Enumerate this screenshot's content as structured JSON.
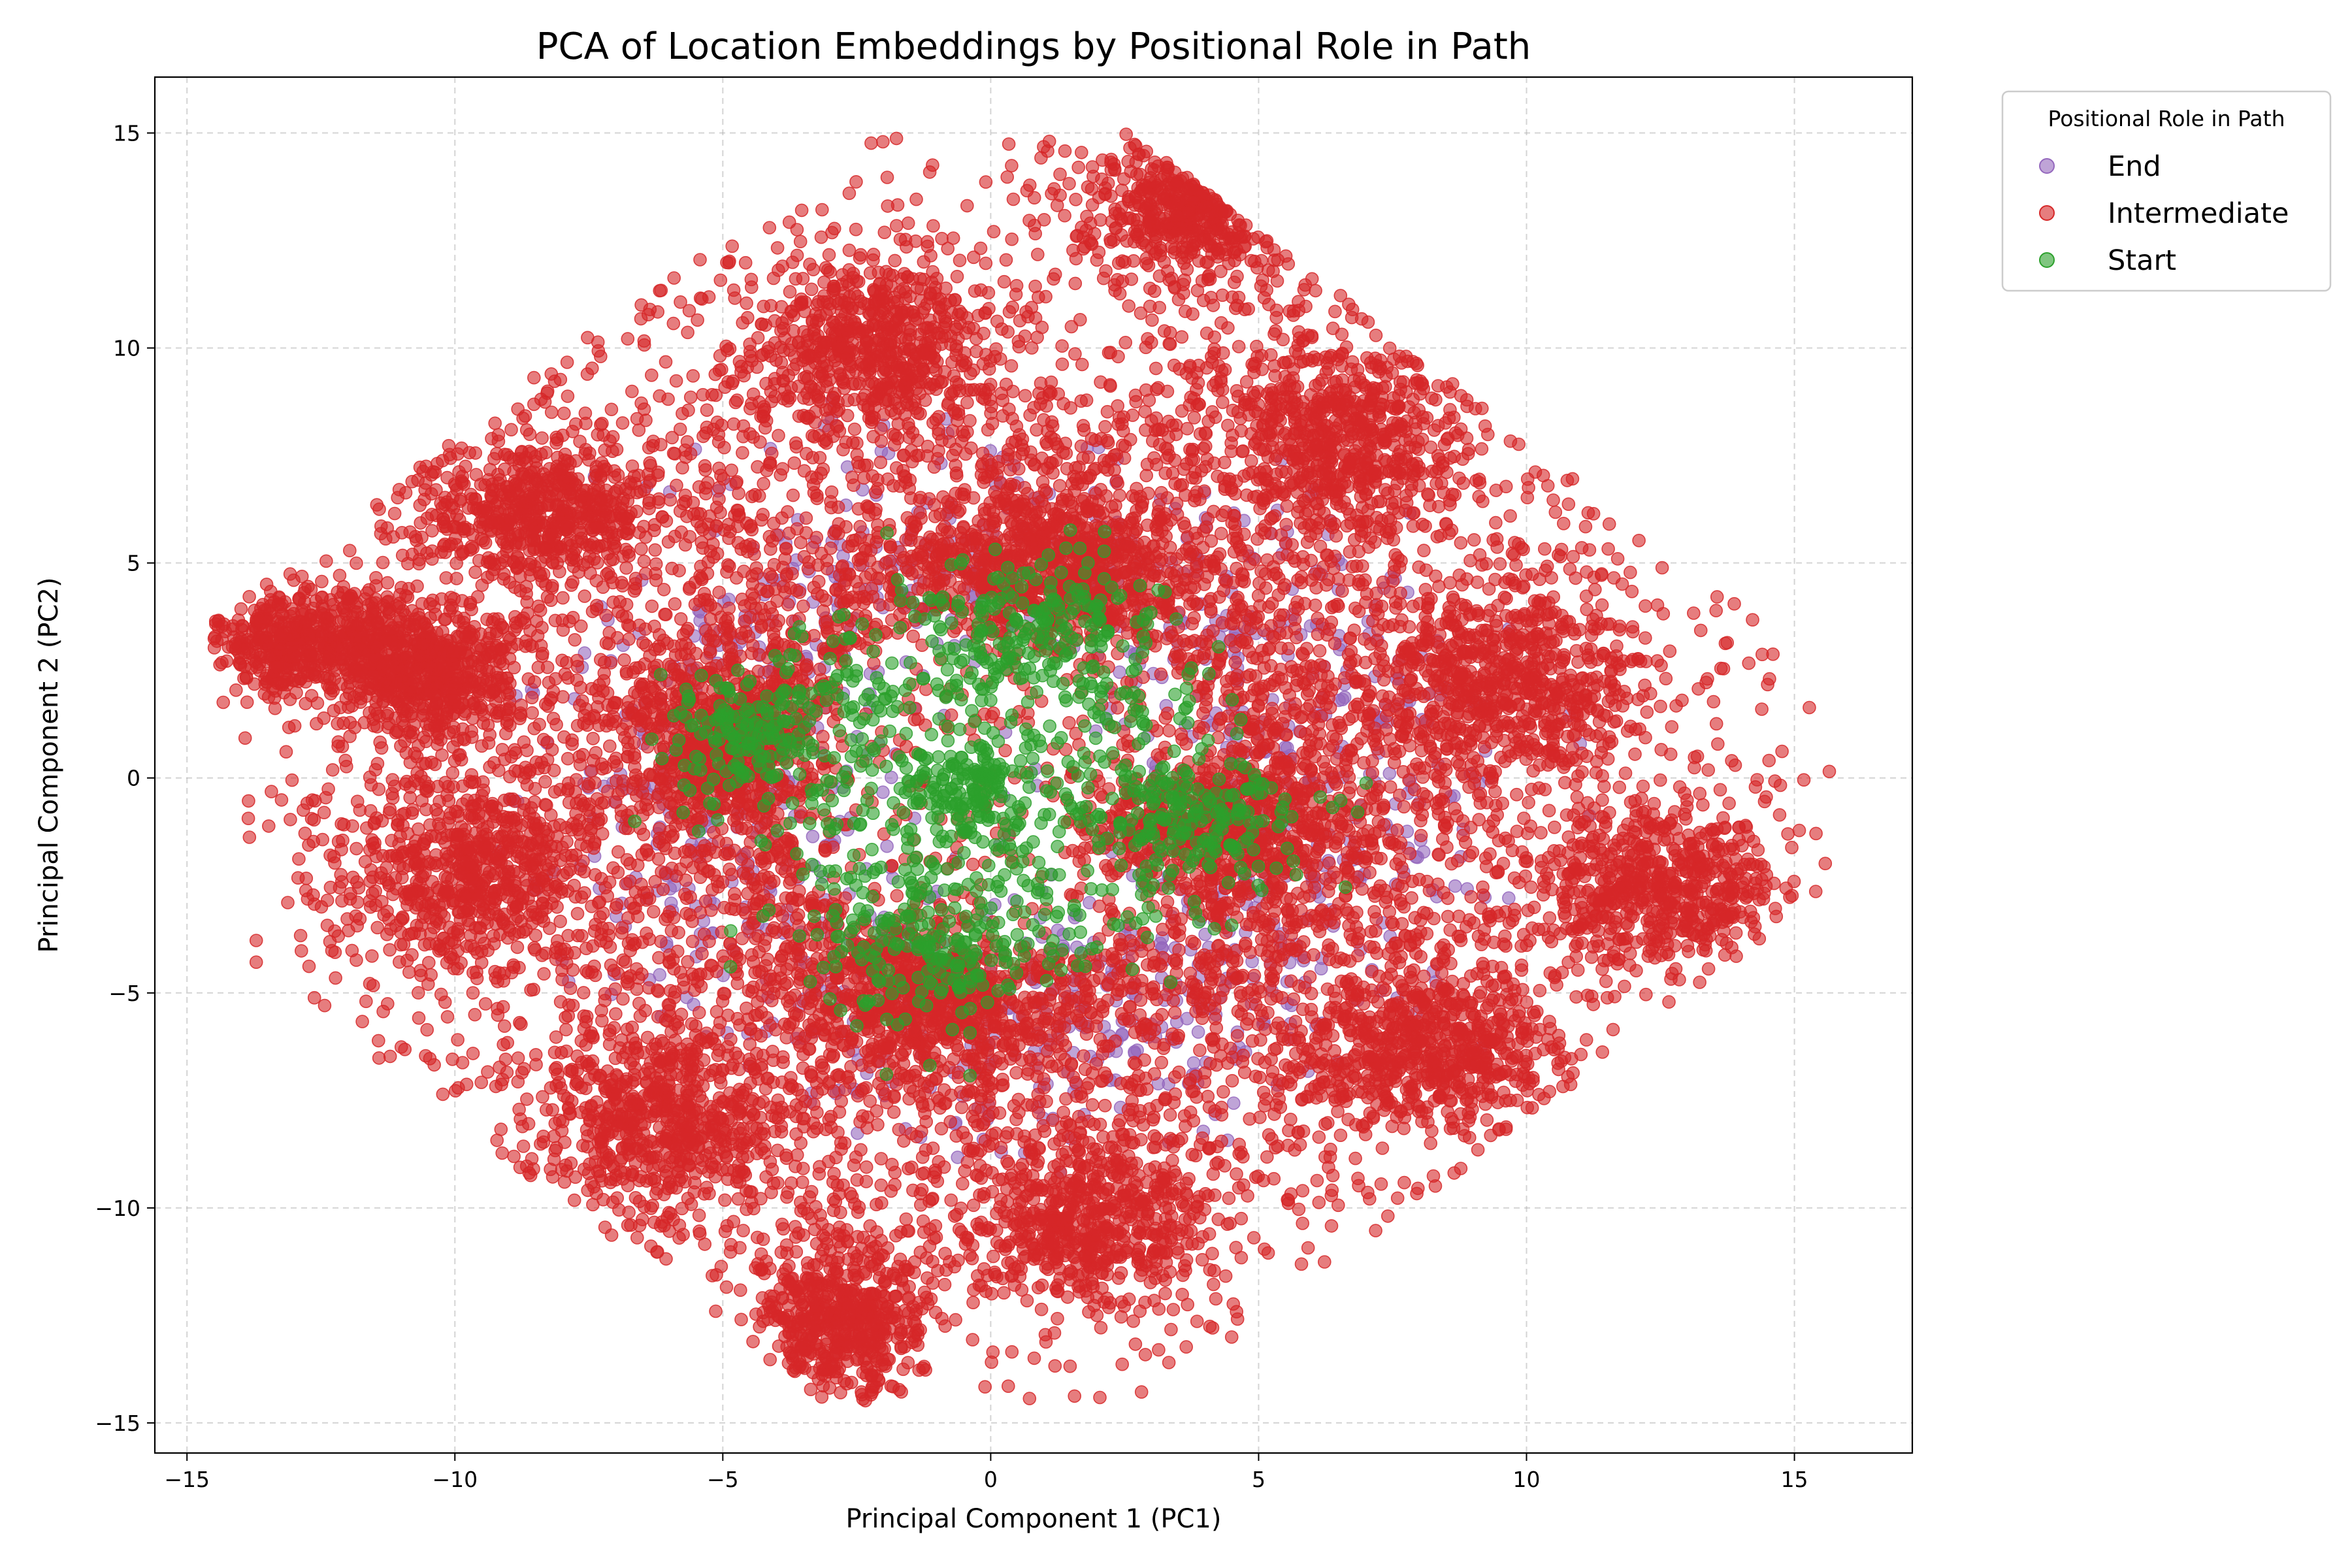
{
  "chart_data": {
    "type": "scatter",
    "title": "PCA of Location Embeddings by Positional Role in Path",
    "xlabel": "Principal Component 1 (PC1)",
    "ylabel": "Principal Component 2 (PC2)",
    "xlim": [
      -15.6,
      17.2
    ],
    "ylim": [
      -15.7,
      16.3
    ],
    "xticks": [
      -15,
      -10,
      -5,
      0,
      5,
      10,
      15
    ],
    "yticks": [
      -15,
      -10,
      -5,
      0,
      5,
      10,
      15
    ],
    "xtick_labels": [
      "−15",
      "−10",
      "−5",
      "0",
      "5",
      "10",
      "15"
    ],
    "ytick_labels": [
      "−15",
      "−10",
      "−5",
      "0",
      "5",
      "10",
      "15"
    ],
    "grid": true,
    "legend": {
      "title": "Positional Role in Path",
      "placement": "outside-upper-right"
    },
    "series": [
      {
        "name": "End",
        "color": "#9467bd",
        "alpha": 0.6,
        "points_approx": 1100,
        "distribution": {
          "shape": "ring",
          "center": [
            0.5,
            -0.3
          ],
          "radius": 6.0,
          "spread": 1.6
        }
      },
      {
        "name": "Intermediate",
        "color": "#d62728",
        "alpha": 0.6,
        "points_approx": 16000,
        "clusters": [
          {
            "center": [
              -2.2,
              10.2
            ],
            "sd": [
              1.0,
              1.1
            ]
          },
          {
            "center": [
              3.8,
              13.2
            ],
            "sd": [
              1.0,
              0.9
            ]
          },
          {
            "center": [
              6.5,
              8.0
            ],
            "sd": [
              1.2,
              1.1
            ]
          },
          {
            "center": [
              -8.5,
              6.2
            ],
            "sd": [
              1.2,
              0.8
            ]
          },
          {
            "center": [
              -12.8,
              3.2
            ],
            "sd": [
              1.1,
              0.6
            ]
          },
          {
            "center": [
              -10.5,
              2.5
            ],
            "sd": [
              0.9,
              0.8
            ]
          },
          {
            "center": [
              9.5,
              2.2
            ],
            "sd": [
              1.3,
              1.1
            ]
          },
          {
            "center": [
              1.2,
              4.9
            ],
            "sd": [
              1.3,
              1.0
            ]
          },
          {
            "center": [
              -5.0,
              0.8
            ],
            "sd": [
              1.1,
              1.0
            ]
          },
          {
            "center": [
              4.0,
              -1.0
            ],
            "sd": [
              1.3,
              1.0
            ]
          },
          {
            "center": [
              -9.8,
              -2.2
            ],
            "sd": [
              1.1,
              1.1
            ]
          },
          {
            "center": [
              12.5,
              -2.5
            ],
            "sd": [
              1.3,
              0.9
            ]
          },
          {
            "center": [
              -1.2,
              -5.2
            ],
            "sd": [
              1.2,
              1.0
            ]
          },
          {
            "center": [
              8.2,
              -6.3
            ],
            "sd": [
              1.3,
              0.9
            ]
          },
          {
            "center": [
              -6.2,
              -8.0
            ],
            "sd": [
              1.2,
              1.1
            ]
          },
          {
            "center": [
              1.8,
              -10.2
            ],
            "sd": [
              1.1,
              1.0
            ]
          },
          {
            "center": [
              -2.8,
              -12.5
            ],
            "sd": [
              0.8,
              1.0
            ]
          }
        ],
        "background": {
          "center": [
            0.5,
            0.2
          ],
          "sd": [
            6.2,
            6.0
          ]
        }
      },
      {
        "name": "Start",
        "color": "#2ca02c",
        "alpha": 0.6,
        "points_approx": 1300,
        "clusters": [
          {
            "center": [
              -0.5,
              -0.2
            ],
            "sd": [
              0.6,
              0.5
            ]
          },
          {
            "center": [
              1.0,
              3.5
            ],
            "sd": [
              1.0,
              0.8
            ]
          },
          {
            "center": [
              -4.5,
              1.0
            ],
            "sd": [
              0.8,
              0.7
            ]
          },
          {
            "center": [
              4.0,
              -1.0
            ],
            "sd": [
              1.0,
              0.8
            ]
          },
          {
            "center": [
              -1.2,
              -4.0
            ],
            "sd": [
              1.0,
              0.8
            ]
          }
        ],
        "ring": {
          "center": [
            0.0,
            0.0
          ],
          "radius": 3.2,
          "spread": 1.2
        }
      }
    ]
  }
}
